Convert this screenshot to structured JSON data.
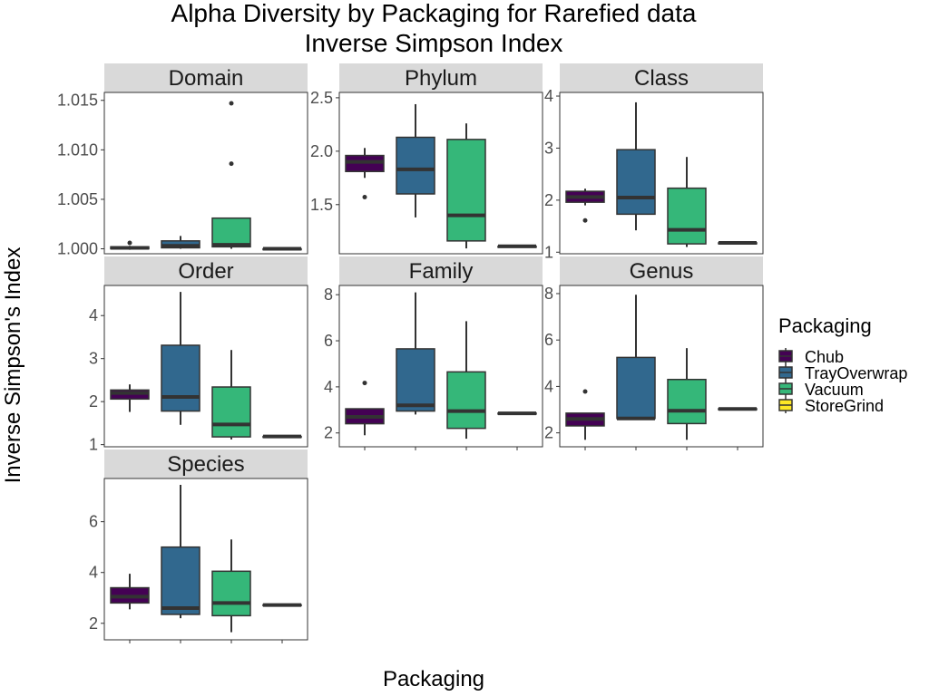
{
  "chart_data": {
    "type": "box",
    "title": "Alpha Diversity by Packaging for Rarefied data",
    "subtitle": "Inverse Simpson Index",
    "xlabel": "Packaging",
    "ylabel": "Inverse Simpson's Index",
    "legend_title": "Packaging",
    "legend_position": "right",
    "grid": false,
    "categories": [
      "Chub",
      "TrayOverwrap",
      "Vacuum",
      "StoreGrind"
    ],
    "colors": [
      "#440154",
      "#31688E",
      "#35B779",
      "#FDE725"
    ],
    "facets": [
      {
        "name": "Domain",
        "ylim": [
          0.9995,
          1.0158
        ],
        "yticks": [
          1.0,
          1.005,
          1.01,
          1.015
        ],
        "ytick_labels": [
          "1.000",
          "1.005",
          "1.010",
          "1.015"
        ],
        "boxes": [
          {
            "category": "Chub",
            "low": 0.9999,
            "q1": 1.0,
            "median": 1.0001,
            "q3": 1.0002,
            "high": 1.0003,
            "outliers": [
              1.0006
            ]
          },
          {
            "category": "TrayOverwrap",
            "low": 1.0,
            "q1": 1.0001,
            "median": 1.0003,
            "q3": 1.0008,
            "high": 1.0013,
            "outliers": []
          },
          {
            "category": "Vacuum",
            "low": 1.0,
            "q1": 1.0002,
            "median": 1.0004,
            "q3": 1.0031,
            "high": 1.0031,
            "outliers": [
              1.0086,
              1.0147
            ]
          },
          {
            "category": "StoreGrind",
            "low": 0.9999,
            "q1": 1.0,
            "median": 1.0,
            "q3": 1.0,
            "high": 1.0,
            "outliers": []
          }
        ]
      },
      {
        "name": "Phylum",
        "ylim": [
          1.04,
          2.55
        ],
        "yticks": [
          1.5,
          2.0,
          2.5
        ],
        "ytick_labels": [
          "1.5",
          "2.0",
          "2.5"
        ],
        "boxes": [
          {
            "category": "Chub",
            "low": 1.75,
            "q1": 1.81,
            "median": 1.9,
            "q3": 1.96,
            "high": 2.03,
            "outliers": [
              1.57
            ]
          },
          {
            "category": "TrayOverwrap",
            "low": 1.38,
            "q1": 1.6,
            "median": 1.83,
            "q3": 2.13,
            "high": 2.44,
            "outliers": []
          },
          {
            "category": "Vacuum",
            "low": 1.09,
            "q1": 1.16,
            "median": 1.4,
            "q3": 2.11,
            "high": 2.26,
            "outliers": []
          },
          {
            "category": "StoreGrind",
            "low": 1.1,
            "q1": 1.1,
            "median": 1.11,
            "q3": 1.11,
            "high": 1.11,
            "outliers": []
          }
        ]
      },
      {
        "name": "Class",
        "ylim": [
          0.97,
          4.07
        ],
        "yticks": [
          1,
          2,
          3,
          4
        ],
        "ytick_labels": [
          "1",
          "2",
          "3",
          "4"
        ],
        "boxes": [
          {
            "category": "Chub",
            "low": 1.9,
            "q1": 1.96,
            "median": 2.06,
            "q3": 2.17,
            "high": 2.22,
            "outliers": [
              1.61
            ]
          },
          {
            "category": "TrayOverwrap",
            "low": 1.42,
            "q1": 1.73,
            "median": 2.05,
            "q3": 2.97,
            "high": 3.88,
            "outliers": []
          },
          {
            "category": "Vacuum",
            "low": 1.1,
            "q1": 1.16,
            "median": 1.43,
            "q3": 2.23,
            "high": 2.83,
            "outliers": []
          },
          {
            "category": "StoreGrind",
            "low": 1.16,
            "q1": 1.17,
            "median": 1.18,
            "q3": 1.18,
            "high": 1.19,
            "outliers": []
          }
        ]
      },
      {
        "name": "Order",
        "ylim": [
          0.95,
          4.7
        ],
        "yticks": [
          1,
          2,
          3,
          4
        ],
        "ytick_labels": [
          "1",
          "2",
          "3",
          "4"
        ],
        "boxes": [
          {
            "category": "Chub",
            "low": 1.76,
            "q1": 2.06,
            "median": 2.2,
            "q3": 2.27,
            "high": 2.4,
            "outliers": []
          },
          {
            "category": "TrayOverwrap",
            "low": 1.46,
            "q1": 1.78,
            "median": 2.11,
            "q3": 3.31,
            "high": 4.55,
            "outliers": []
          },
          {
            "category": "Vacuum",
            "low": 1.12,
            "q1": 1.18,
            "median": 1.47,
            "q3": 2.34,
            "high": 3.2,
            "outliers": []
          },
          {
            "category": "StoreGrind",
            "low": 1.17,
            "q1": 1.18,
            "median": 1.19,
            "q3": 1.19,
            "high": 1.2,
            "outliers": []
          }
        ]
      },
      {
        "name": "Family",
        "ylim": [
          1.4,
          8.4
        ],
        "yticks": [
          2,
          4,
          6,
          8
        ],
        "ytick_labels": [
          "2",
          "4",
          "6",
          "8"
        ],
        "boxes": [
          {
            "category": "Chub",
            "low": 1.9,
            "q1": 2.4,
            "median": 2.7,
            "q3": 3.05,
            "high": 3.05,
            "outliers": [
              4.17
            ]
          },
          {
            "category": "TrayOverwrap",
            "low": 2.8,
            "q1": 2.95,
            "median": 3.2,
            "q3": 5.65,
            "high": 8.1,
            "outliers": []
          },
          {
            "category": "Vacuum",
            "low": 1.75,
            "q1": 2.2,
            "median": 2.95,
            "q3": 4.65,
            "high": 6.85,
            "outliers": []
          },
          {
            "category": "StoreGrind",
            "low": 2.83,
            "q1": 2.84,
            "median": 2.85,
            "q3": 2.86,
            "high": 2.87,
            "outliers": []
          }
        ]
      },
      {
        "name": "Genus",
        "ylim": [
          1.4,
          8.35
        ],
        "yticks": [
          2,
          4,
          6,
          8
        ],
        "ytick_labels": [
          "2",
          "4",
          "6",
          "8"
        ],
        "boxes": [
          {
            "category": "Chub",
            "low": 1.7,
            "q1": 2.3,
            "median": 2.6,
            "q3": 2.85,
            "high": 2.85,
            "outliers": [
              3.78
            ]
          },
          {
            "category": "TrayOverwrap",
            "low": 2.6,
            "q1": 2.62,
            "median": 2.62,
            "q3": 5.25,
            "high": 7.95,
            "outliers": []
          },
          {
            "category": "Vacuum",
            "low": 1.7,
            "q1": 2.4,
            "median": 2.95,
            "q3": 4.3,
            "high": 5.65,
            "outliers": []
          },
          {
            "category": "StoreGrind",
            "low": 3.0,
            "q1": 3.02,
            "median": 3.03,
            "q3": 3.04,
            "high": 3.05,
            "outliers": []
          }
        ]
      },
      {
        "name": "Species",
        "ylim": [
          1.35,
          7.7
        ],
        "yticks": [
          2,
          4,
          6
        ],
        "ytick_labels": [
          "2",
          "4",
          "6"
        ],
        "boxes": [
          {
            "category": "Chub",
            "low": 2.55,
            "q1": 2.8,
            "median": 3.05,
            "q3": 3.4,
            "high": 3.95,
            "outliers": []
          },
          {
            "category": "TrayOverwrap",
            "low": 2.2,
            "q1": 2.35,
            "median": 2.6,
            "q3": 5.0,
            "high": 7.45,
            "outliers": []
          },
          {
            "category": "Vacuum",
            "low": 1.65,
            "q1": 2.3,
            "median": 2.8,
            "q3": 4.05,
            "high": 5.3,
            "outliers": []
          },
          {
            "category": "StoreGrind",
            "low": 2.7,
            "q1": 2.71,
            "median": 2.72,
            "q3": 2.73,
            "high": 2.74,
            "outliers": []
          }
        ]
      }
    ]
  }
}
